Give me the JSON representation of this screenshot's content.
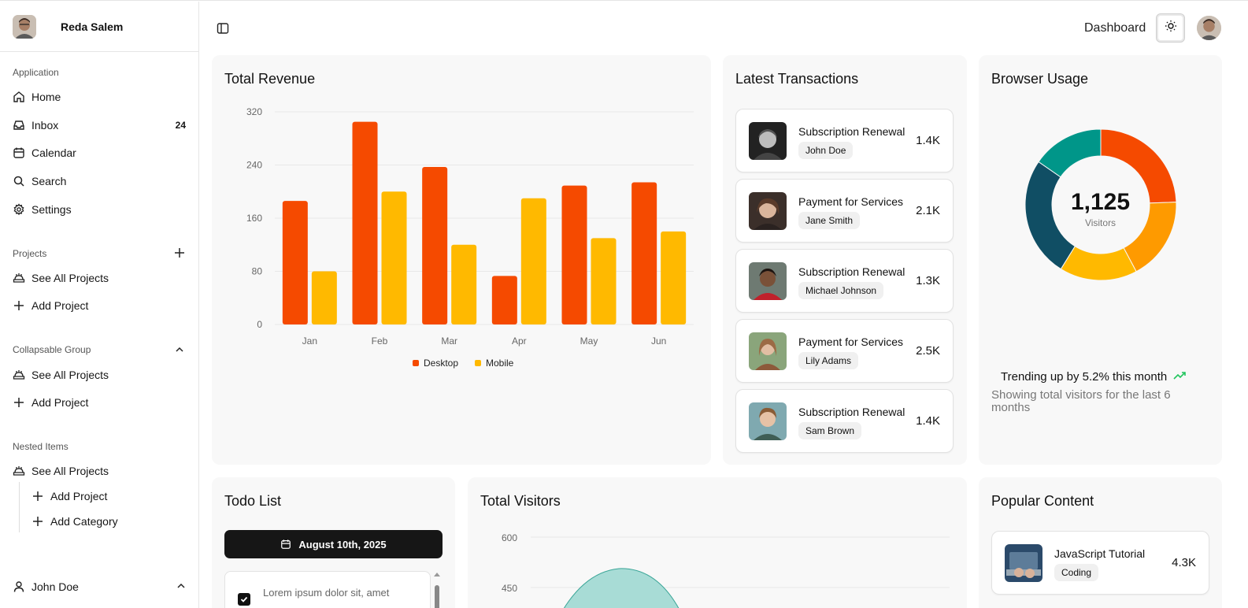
{
  "sidebar": {
    "user_name": "Reda Salem",
    "sections": {
      "application": "Application",
      "projects": "Projects",
      "collapsable": "Collapsable Group",
      "nested": "Nested Items"
    },
    "app_items": [
      {
        "label": "Home",
        "icon": "home-icon"
      },
      {
        "label": "Inbox",
        "icon": "inbox-icon",
        "count": "24"
      },
      {
        "label": "Calendar",
        "icon": "calendar-icon"
      },
      {
        "label": "Search",
        "icon": "search-icon"
      },
      {
        "label": "Settings",
        "icon": "settings-icon"
      }
    ],
    "projects_items": [
      {
        "label": "See All Projects",
        "icon": "projects-icon"
      },
      {
        "label": "Add Project",
        "icon": "plus-icon"
      }
    ],
    "collapsable_items": [
      {
        "label": "See All Projects",
        "icon": "projects-icon"
      },
      {
        "label": "Add Project",
        "icon": "plus-icon"
      }
    ],
    "nested_items": [
      {
        "label": "See All Projects",
        "icon": "projects-icon"
      },
      {
        "label": "Add Project",
        "icon": "plus-icon"
      },
      {
        "label": "Add Category",
        "icon": "plus-icon"
      }
    ],
    "footer_user": "John Doe"
  },
  "topbar": {
    "title": "Dashboard"
  },
  "revenue": {
    "title": "Total Revenue",
    "chart_data": {
      "type": "bar",
      "categories": [
        "Jan",
        "Feb",
        "Mar",
        "Apr",
        "May",
        "Jun"
      ],
      "series": [
        {
          "name": "Desktop",
          "values": [
            186,
            305,
            237,
            73,
            209,
            214
          ],
          "color": "#f54a00"
        },
        {
          "name": "Mobile",
          "values": [
            80,
            200,
            120,
            190,
            130,
            140
          ],
          "color": "#ffb900"
        }
      ],
      "yticks": [
        "0",
        "80",
        "160",
        "240",
        "320"
      ],
      "ylim": [
        0,
        320
      ],
      "legend": "bottom-center",
      "grid": true
    }
  },
  "transactions": {
    "title": "Latest Transactions",
    "items": [
      {
        "title": "Subscription Renewal",
        "name": "John Doe",
        "amount": "1.4K"
      },
      {
        "title": "Payment for Services",
        "name": "Jane Smith",
        "amount": "2.1K"
      },
      {
        "title": "Subscription Renewal",
        "name": "Michael Johnson",
        "amount": "1.3K"
      },
      {
        "title": "Payment for Services",
        "name": "Lily Adams",
        "amount": "2.5K"
      },
      {
        "title": "Subscription Renewal",
        "name": "Sam Brown",
        "amount": "1.4K"
      }
    ]
  },
  "browser": {
    "title": "Browser Usage",
    "total": "1,125",
    "total_label": "Visitors",
    "trend": "Trending up by 5.2% this month",
    "sub": "Showing total visitors for the last 6 months",
    "chart_data": {
      "type": "pie",
      "slices": [
        {
          "value": 275,
          "color": "#f54a00"
        },
        {
          "value": 200,
          "color": "#fe9a00"
        },
        {
          "value": 187,
          "color": "#ffb900"
        },
        {
          "value": 290,
          "color": "#104e64"
        },
        {
          "value": 173,
          "color": "#009689"
        }
      ]
    }
  },
  "todo": {
    "title": "Todo List",
    "date": "August 10th, 2025",
    "items": [
      {
        "text": "Lorem ipsum dolor sit, amet",
        "checked": true
      }
    ]
  },
  "visitors": {
    "title": "Total Visitors",
    "chart_data": {
      "type": "area",
      "yticks": [
        "450",
        "600"
      ],
      "color": "#5cc0b5"
    }
  },
  "popular": {
    "title": "Popular Content",
    "items": [
      {
        "title": "JavaScript Tutorial",
        "tag": "Coding",
        "amount": "4.3K"
      }
    ]
  }
}
